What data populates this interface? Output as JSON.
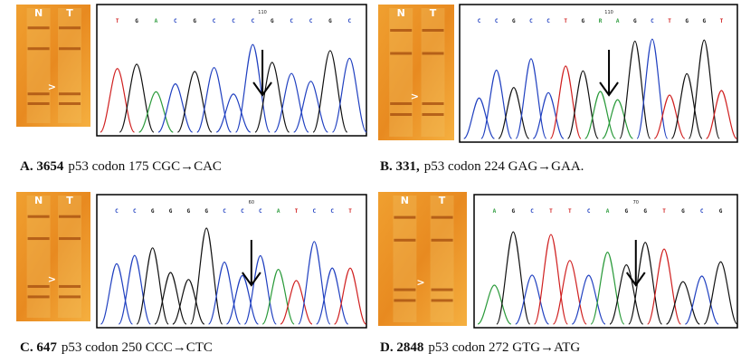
{
  "panels": [
    {
      "id_label": "A. 3654",
      "caption": "p53 codon 175 CGC→CAC",
      "lanes": [
        "N",
        "T"
      ],
      "marker": ">",
      "position": "110",
      "bases": [
        "T",
        "G",
        "A",
        "C",
        "G",
        "C",
        "C",
        "C",
        "G",
        "C",
        "C",
        "G",
        "C"
      ]
    },
    {
      "id_label": "B. 331,",
      "caption": "p53 codon 224 GAG→GAA.",
      "lanes": [
        "N",
        "T"
      ],
      "marker": ">",
      "position": "110",
      "bases": [
        "C",
        "C",
        "G",
        "C",
        "C",
        "T",
        "G",
        "R",
        "A",
        "G",
        "C",
        "T",
        "G",
        "G",
        "T"
      ]
    },
    {
      "id_label": "C. 647",
      "caption": "p53 codon 250 CCC→CTC",
      "lanes": [
        "N",
        "T"
      ],
      "marker": ">",
      "position": "60",
      "bases": [
        "C",
        "C",
        "G",
        "G",
        "G",
        "G",
        "C",
        "C",
        "C",
        "A",
        "T",
        "C",
        "C",
        "T"
      ]
    },
    {
      "id_label": "D. 2848",
      "caption": "p53 codon 272 GTG→ATG",
      "lanes": [
        "N",
        "T"
      ],
      "marker": ">",
      "position": "70",
      "bases": [
        "A",
        "G",
        "C",
        "T",
        "T",
        "C",
        "A",
        "G",
        "G",
        "T",
        "G",
        "C",
        "G"
      ]
    }
  ]
}
